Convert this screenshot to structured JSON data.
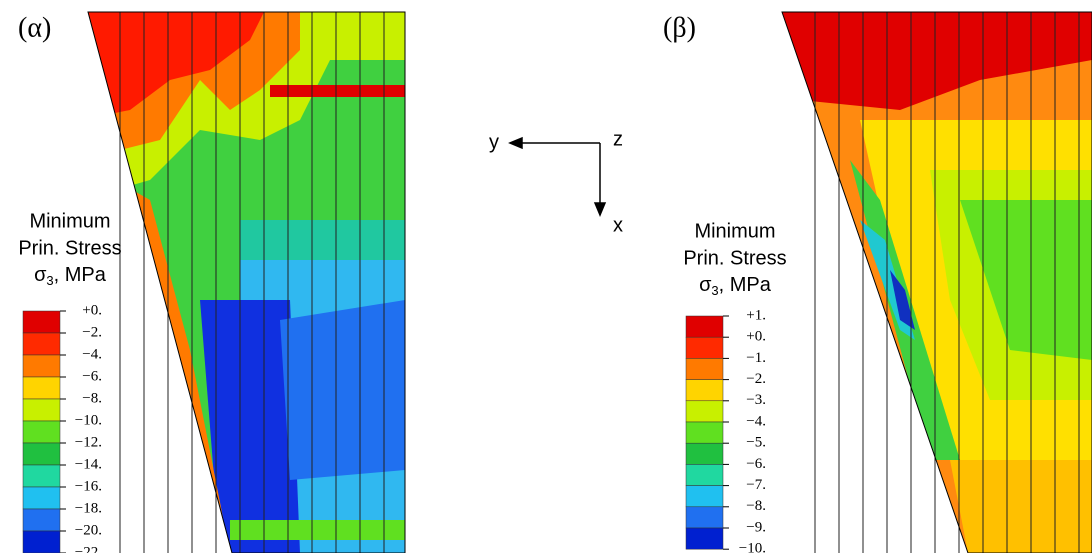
{
  "panels": [
    {
      "label": "(α)",
      "legend": {
        "title": [
          "Minimum",
          "Prin. Stress"
        ],
        "symbol": "σ",
        "subscript": "3",
        "unit": ", MPa",
        "levels": [
          "+0.",
          "−2.",
          "−4.",
          "−6.",
          "−8.",
          "−10.",
          "−12.",
          "−14.",
          "−16.",
          "−18.",
          "−20.",
          "−22."
        ]
      }
    },
    {
      "label": "(β)",
      "legend": {
        "title": [
          "Minimum",
          "Prin. Stress"
        ],
        "symbol": "σ",
        "subscript": "3",
        "unit": ", MPa",
        "levels": [
          "+1.",
          "+0.",
          "−1.",
          "−2.",
          "−3.",
          "−4.",
          "−5.",
          "−6.",
          "−7.",
          "−8.",
          "−9.",
          "−10."
        ]
      }
    }
  ],
  "axes": {
    "y": "y",
    "z": "z",
    "x": "x"
  }
}
